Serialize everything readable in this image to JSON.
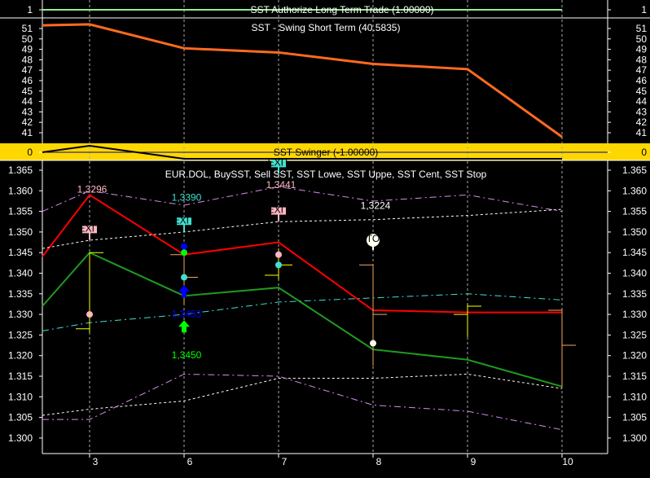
{
  "panels": {
    "authorize": {
      "title": "SST Authorize Long Term Trade (1.00000)",
      "tick": "1",
      "color": "#90ee90"
    },
    "swing": {
      "title": "SST - Swing Short Term (40.5835)",
      "ticks": [
        "51",
        "50",
        "49",
        "48",
        "47",
        "46",
        "45",
        "44",
        "43",
        "42",
        "41"
      ],
      "color": "#ff6a20"
    },
    "swinger": {
      "title": "SST Swinger (-1.00000)",
      "tick": "0",
      "background": "#ffd700"
    },
    "main": {
      "title": "EUR.DOL, BuySST, Sell SST, SST Lowe, SST Uppe, SST Cent, SST Stop",
      "ticks": [
        "1.365",
        "1.360",
        "1.355",
        "1.350",
        "1.345",
        "1.340",
        "1.335",
        "1.330",
        "1.325",
        "1.320",
        "1.315",
        "1.310",
        "1.305",
        "1.300"
      ]
    }
  },
  "x_axis": {
    "labels": [
      "3",
      "6",
      "7",
      "8",
      "9",
      "10"
    ]
  },
  "chart_data": {
    "type": "line",
    "x": [
      "",
      "3",
      "6",
      "7",
      "8",
      "9",
      "10"
    ],
    "swing_short_term": [
      51.3,
      51.4,
      49.1,
      48.7,
      47.6,
      47.1,
      40.6
    ],
    "swinger": [
      0,
      1,
      -1,
      -1,
      -1,
      -1,
      -1
    ],
    "authorize": [
      1,
      1,
      1,
      1,
      1,
      1,
      1
    ],
    "ylim_main": [
      1.298,
      1.367
    ],
    "series": [
      {
        "name": "Sell SST",
        "color": "#ff0000",
        "style": "solid",
        "values": [
          1.344,
          1.359,
          1.3445,
          1.3475,
          1.331,
          1.3305,
          1.3305
        ]
      },
      {
        "name": "BuySST",
        "color": "#1e9a1e",
        "style": "solid",
        "values": [
          1.332,
          1.345,
          1.3345,
          1.3365,
          1.3215,
          1.319,
          1.3125
        ]
      },
      {
        "name": "SST Uppe",
        "color": "#d58cf0",
        "style": "dashdot",
        "values": [
          1.355,
          1.36,
          1.3565,
          1.361,
          1.3575,
          1.359,
          1.355
        ]
      },
      {
        "name": "SST Uppe",
        "color": "#ffffff",
        "style": "dotted",
        "values": [
          1.346,
          1.348,
          1.35,
          1.3525,
          1.353,
          1.354,
          1.3555
        ]
      },
      {
        "name": "SST Cent",
        "color": "#40e0d0",
        "style": "dashdot",
        "values": [
          1.326,
          1.328,
          1.33,
          1.333,
          1.334,
          1.335,
          1.3335
        ]
      },
      {
        "name": "SST Lowe",
        "color": "#ffffff",
        "style": "dotted",
        "values": [
          1.3055,
          1.307,
          1.309,
          1.3145,
          1.3145,
          1.3155,
          1.312
        ]
      },
      {
        "name": "SST Lowe",
        "color": "#d58cf0",
        "style": "dashdot",
        "values": [
          1.3045,
          1.3045,
          1.3155,
          1.315,
          1.308,
          1.3065,
          1.302
        ]
      }
    ],
    "bars": [
      {
        "i": 1,
        "high": 1.345,
        "low": 1.3255,
        "open": 1.3265,
        "close": 1.345,
        "color": "#ffff00"
      },
      {
        "i": 2,
        "high": 1.3445,
        "low": 1.3325,
        "open": 1.3445,
        "close": 1.339,
        "color": "#f4a460"
      },
      {
        "i": 3,
        "high": 1.346,
        "low": 1.3385,
        "open": 1.3395,
        "close": 1.342,
        "color": "#ffff00"
      },
      {
        "i": 4,
        "high": 1.342,
        "low": 1.3175,
        "open": 1.342,
        "close": 1.33,
        "color": "#f4a460"
      },
      {
        "i": 5,
        "high": 1.3325,
        "low": 1.3245,
        "open": 1.33,
        "close": 1.332,
        "color": "#ffff00"
      },
      {
        "i": 6,
        "high": 1.331,
        "low": 1.312,
        "open": 1.331,
        "close": 1.3225,
        "color": "#f4a460"
      }
    ],
    "dots": [
      {
        "i": 1,
        "v": 1.33,
        "color": "#ffb6c1"
      },
      {
        "i": 2,
        "v": 1.3465,
        "color": "#0000ff"
      },
      {
        "i": 2,
        "v": 1.345,
        "color": "#00ff00"
      },
      {
        "i": 2,
        "v": 1.339,
        "color": "#40e0d0"
      },
      {
        "i": 3,
        "v": 1.3445,
        "color": "#ffb6c1"
      },
      {
        "i": 3,
        "v": 1.342,
        "color": "#40e0d0"
      },
      {
        "i": 4,
        "v": 1.323,
        "color": "#fffff0"
      }
    ],
    "arrows": [
      {
        "i": 2,
        "v": 1.3355,
        "color": "#0000ff"
      },
      {
        "i": 2,
        "v": 1.327,
        "color": "#00ff00"
      }
    ],
    "signs": [
      {
        "i": 1,
        "v": 1.3505,
        "label": "EXIT",
        "color": "#ffb6c1"
      },
      {
        "i": 2,
        "v": 1.3525,
        "label": "EXIT",
        "color": "#40e0d0"
      },
      {
        "i": 3,
        "v": 1.355,
        "label": "EXIT",
        "color": "#ffb6c1"
      },
      {
        "i": 3,
        "v": 1.3665,
        "label": "EXIT",
        "color": "#40e0d0"
      },
      {
        "i": 4,
        "v": 1.348,
        "label": "STOP",
        "color": "#fffff0"
      }
    ],
    "annotations": [
      {
        "text": "1,3296",
        "i": 1,
        "v": 1.3608,
        "color": "#ffb6c1"
      },
      {
        "text": "1,3390",
        "i": 2,
        "v": 1.3588,
        "color": "#40e0d0"
      },
      {
        "text": "1,3441",
        "i": 3,
        "v": 1.3618,
        "color": "#ffb6c1"
      },
      {
        "text": "1,3224",
        "i": 4,
        "v": 1.3568,
        "color": "#ffffff"
      },
      {
        "text": "1,3453",
        "i": 2,
        "v": 1.3305,
        "color": "#0000ff"
      },
      {
        "text": "1,3450",
        "i": 2,
        "v": 1.3205,
        "color": "#00ff00"
      }
    ]
  }
}
